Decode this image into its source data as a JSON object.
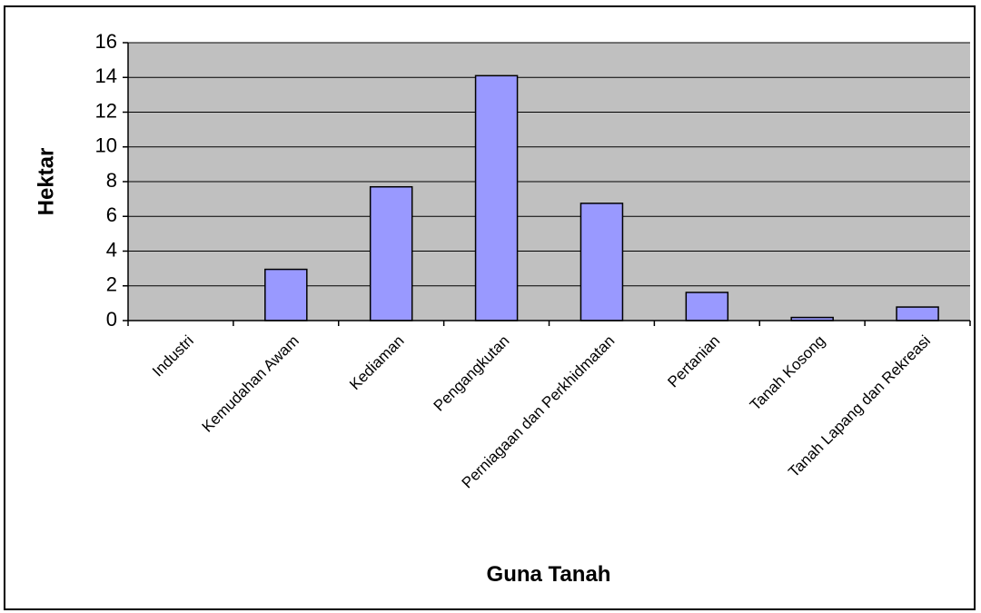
{
  "chart_data": {
    "type": "bar",
    "categories": [
      "Industri",
      "Kemudahan Awam",
      "Kediaman",
      "Pengangkutan",
      "Perniagaan dan Perkhidmatan",
      "Pertanian",
      "Tanah Kosong",
      "Tanah Lapang dan Rekreasi"
    ],
    "values": [
      0,
      2.95,
      7.7,
      14.1,
      6.75,
      1.62,
      0.18,
      0.78
    ],
    "xlabel": "Guna Tanah",
    "ylabel": "Hektar",
    "ylim": [
      0,
      16
    ],
    "yticks": [
      0,
      2,
      4,
      6,
      8,
      10,
      12,
      14,
      16
    ],
    "grid": true,
    "colors": {
      "bar": "#9999ff",
      "plot_bg": "#c0c0c0",
      "grid": "#000000"
    }
  }
}
